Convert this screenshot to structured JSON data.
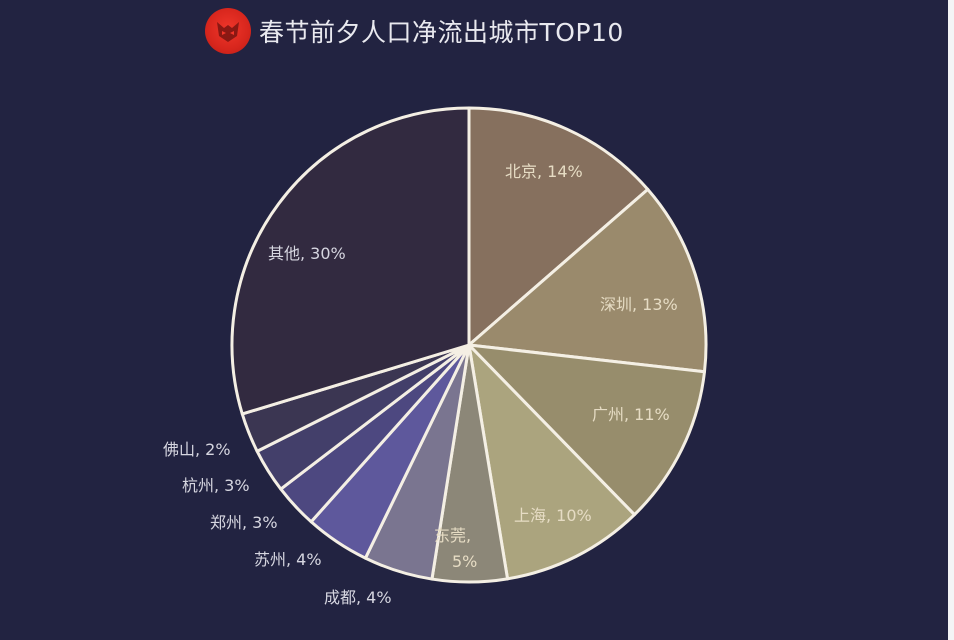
{
  "header": {
    "title": "春节前夕人口净流出城市TOP10",
    "logo_icon": "red-circle-mask-logo"
  },
  "colors": {
    "background": "#222341",
    "stroke": "#f4efe4"
  },
  "chart_data": {
    "type": "pie",
    "title": "春节前夕人口净流出城市TOP10",
    "start_angle": "12 o'clock, clockwise",
    "slices": [
      {
        "label": "北京",
        "value": 14,
        "text": "北京, 14%",
        "color": "#86705e",
        "draw_share": 13.6
      },
      {
        "label": "深圳",
        "value": 13,
        "text": "深圳, 13%",
        "color": "#9a8a6c",
        "draw_share": 13.2
      },
      {
        "label": "广州",
        "value": 11,
        "text": "广州, 11%",
        "color": "#978d6c",
        "draw_share": 10.9
      },
      {
        "label": "上海",
        "value": 10,
        "text": "上海, 10%",
        "color": "#aba47e",
        "draw_share": 9.7
      },
      {
        "label": "东莞",
        "value": 5,
        "text_line1": "东莞,",
        "text_line2": "5%",
        "color": "#8c8778",
        "draw_share": 5.1
      },
      {
        "label": "成都",
        "value": 4,
        "text": "成都, 4%",
        "color": "#7a7590",
        "draw_share": 4.7
      },
      {
        "label": "苏州",
        "value": 4,
        "text": "苏州, 4%",
        "color": "#5e589c",
        "draw_share": 4.4
      },
      {
        "label": "郑州",
        "value": 3,
        "text": "郑州, 3%",
        "color": "#4d4880",
        "draw_share": 3.0
      },
      {
        "label": "杭州",
        "value": 3,
        "text": "杭州, 3%",
        "color": "#433f6a",
        "draw_share": 3.0
      },
      {
        "label": "佛山",
        "value": 2,
        "text": "佛山, 2%",
        "color": "#3b3652",
        "draw_share": 2.7
      },
      {
        "label": "其他",
        "value": 30,
        "text": "其他, 30%",
        "color": "#322a40",
        "draw_share": 29.7
      }
    ]
  }
}
